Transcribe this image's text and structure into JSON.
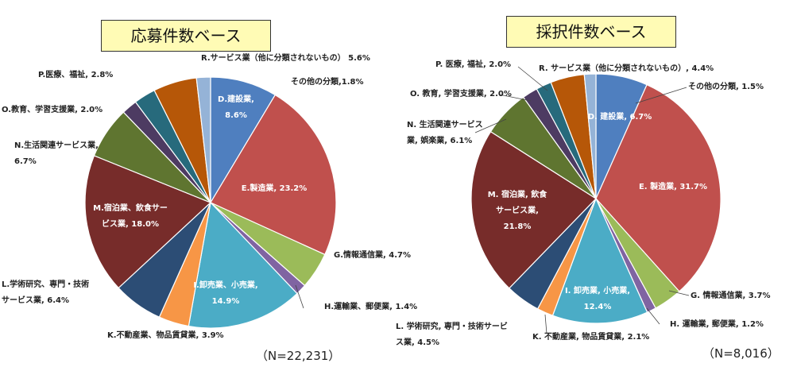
{
  "chart_data": [
    {
      "type": "pie",
      "title": "応募件数ベース",
      "n_label": "（N=22,231）",
      "slices": [
        {
          "label": "D.建設業,",
          "label2": "8.6%",
          "value": 8.6,
          "color": "#4f7fbf"
        },
        {
          "label": "E.製造業, 23.2%",
          "label2": "",
          "value": 23.2,
          "color": "#c0504d"
        },
        {
          "label": "G.情報通信業, 4.7%",
          "label2": "",
          "value": 4.7,
          "color": "#9bbb59"
        },
        {
          "label": "H.運輸業、郵便業, 1.4%",
          "label2": "",
          "value": 1.4,
          "color": "#8064a2"
        },
        {
          "label": "I.卸売業、小売業,",
          "label2": "14.9%",
          "value": 14.9,
          "color": "#4bacc6"
        },
        {
          "label": "K.不動産業、物品賃貸業, 3.9%",
          "label2": "",
          "value": 3.9,
          "color": "#f79646"
        },
        {
          "label": "L.学術研究、専門・技術",
          "label2": "サービス業, 6.4%",
          "value": 6.4,
          "color": "#2c4d75"
        },
        {
          "label": "M.宿泊業、飲食サー",
          "label2": "ビス業, 18.0%",
          "value": 18.0,
          "color": "#772c2a"
        },
        {
          "label": "N.生活関連サービス業,",
          "label2": "6.7%",
          "value": 6.7,
          "color": "#5f7530"
        },
        {
          "label": "O.教育、学習支援業, 2.0%",
          "label2": "",
          "value": 2.0,
          "color": "#4d3b62"
        },
        {
          "label": "P.医療、福祉, 2.8%",
          "label2": "",
          "value": 2.8,
          "color": "#276a7c"
        },
        {
          "label": "R.サービス業（他に分類されないもの） 5.6%",
          "label2": "",
          "value": 5.6,
          "color": "#b65708"
        },
        {
          "label": "その他の分類,1.8%",
          "label2": "",
          "value": 1.8,
          "color": "#95b3d7"
        }
      ]
    },
    {
      "type": "pie",
      "title": "採択件数ベース",
      "n_label": "（N=8,016）",
      "slices": [
        {
          "label": "D. 建設業, 6.7%",
          "label2": "",
          "value": 6.7,
          "color": "#4f7fbf"
        },
        {
          "label": "E. 製造業, 31.7%",
          "label2": "",
          "value": 31.7,
          "color": "#c0504d"
        },
        {
          "label": "G. 情報通信業, 3.7%",
          "label2": "",
          "value": 3.7,
          "color": "#9bbb59"
        },
        {
          "label": "H. 運輸業, 郵便業, 1.2%",
          "label2": "",
          "value": 1.2,
          "color": "#8064a2"
        },
        {
          "label": "I. 卸売業, 小売業,",
          "label2": "12.4%",
          "value": 12.4,
          "color": "#4bacc6"
        },
        {
          "label": "K. 不動産業, 物品賃貸業, 2.1%",
          "label2": "",
          "value": 2.1,
          "color": "#f79646"
        },
        {
          "label": "L. 学術研究, 専門・技術サービ",
          "label2": "ス業, 4.5%",
          "value": 4.5,
          "color": "#2c4d75"
        },
        {
          "label": "M. 宿泊業, 飲食",
          "label2": "サービス業,",
          "label3": "21.8%",
          "value": 21.8,
          "color": "#772c2a"
        },
        {
          "label": "N. 生活関連サービス",
          "label2": "業, 娯楽業, 6.1%",
          "value": 6.1,
          "color": "#5f7530"
        },
        {
          "label": "O. 教育, 学習支援業, 2.0%",
          "label2": "",
          "value": 2.0,
          "color": "#4d3b62"
        },
        {
          "label": "P. 医療, 福祉, 2.0%",
          "label2": "",
          "value": 2.0,
          "color": "#276a7c"
        },
        {
          "label": "R. サービス業（他に分類されないもの）, 4.4%",
          "label2": "",
          "value": 4.4,
          "color": "#b65708"
        },
        {
          "label": "その他の分類, 1.5%",
          "label2": "",
          "value": 1.5,
          "color": "#95b3d7"
        }
      ]
    }
  ]
}
